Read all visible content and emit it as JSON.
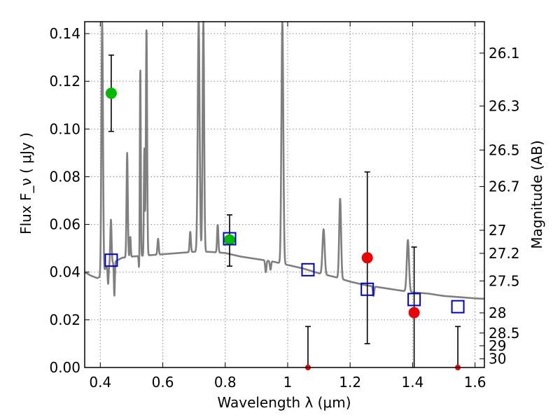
{
  "chart_data": {
    "type": "scatter",
    "xlabel": "Wavelength  λ (μm)",
    "ylabel_left": "Flux  F_ν  ( μJy )",
    "ylabel_right": "Magnitude (AB)",
    "xlim": [
      0.35,
      1.63
    ],
    "ylim": [
      0.0,
      0.145
    ],
    "x_ticks": [
      0.4,
      0.6,
      0.8,
      1.0,
      1.2,
      1.4,
      1.6
    ],
    "x_tick_labels": [
      "0.4",
      "0.6",
      "0.8",
      "1",
      "1.2",
      "1.4",
      "1.6"
    ],
    "y_ticks": [
      0.0,
      0.02,
      0.04,
      0.06,
      0.08,
      0.1,
      0.12,
      0.14
    ],
    "y_tick_labels": [
      "0.00",
      "0.02",
      "0.04",
      "0.06",
      "0.08",
      "0.10",
      "0.12",
      "0.14"
    ],
    "magnitude_ticks": [
      {
        "label": "26.1",
        "mag": 26.1
      },
      {
        "label": "26.3",
        "mag": 26.3
      },
      {
        "label": "26.5",
        "mag": 26.5
      },
      {
        "label": "26.7",
        "mag": 26.7
      },
      {
        "label": "27",
        "mag": 27.0
      },
      {
        "label": "27.2",
        "mag": 27.2
      },
      {
        "label": "27.5",
        "mag": 27.5
      },
      {
        "label": "28",
        "mag": 28.0
      },
      {
        "label": "28.5",
        "mag": 28.5
      },
      {
        "label": "29",
        "mag": 29.0
      },
      {
        "label": "30",
        "mag": 30.0
      }
    ],
    "grid": true,
    "series": [
      {
        "name": "observed-green",
        "color": "#00bb00",
        "points": [
          {
            "x": 0.435,
            "y": 0.115,
            "ylo": 0.099,
            "yhi": 0.131
          },
          {
            "x": 0.814,
            "y": 0.0535,
            "ylo": 0.0425,
            "yhi": 0.064
          }
        ]
      },
      {
        "name": "observed-red",
        "color": "#ee0000",
        "points": [
          {
            "x": 1.255,
            "y": 0.046,
            "ylo": 0.01,
            "yhi": 0.082
          },
          {
            "x": 1.405,
            "y": 0.023,
            "ylo": 0.0,
            "yhi": 0.0505
          }
        ]
      },
      {
        "name": "upper-limits",
        "color": "#ee0000",
        "points": [
          {
            "x": 1.065,
            "y": 0.0,
            "ylo": 0.0,
            "yhi": 0.0172
          },
          {
            "x": 1.545,
            "y": 0.0,
            "ylo": 0.0,
            "yhi": 0.0172
          }
        ]
      },
      {
        "name": "model-photometry",
        "color": "#0000cc",
        "marker": "open-square",
        "points": [
          {
            "x": 0.435,
            "y": 0.045
          },
          {
            "x": 0.814,
            "y": 0.054
          },
          {
            "x": 1.065,
            "y": 0.041
          },
          {
            "x": 1.255,
            "y": 0.0328
          },
          {
            "x": 1.405,
            "y": 0.0285
          },
          {
            "x": 1.545,
            "y": 0.0255
          }
        ]
      }
    ],
    "model_spectrum": {
      "color": "#7f7f7f",
      "continuum": [
        [
          0.35,
          0.04
        ],
        [
          0.37,
          0.0385
        ],
        [
          0.39,
          0.0375
        ],
        [
          0.4,
          0.038
        ],
        [
          0.41,
          0.041
        ],
        [
          0.44,
          0.044
        ],
        [
          0.47,
          0.046
        ],
        [
          0.5,
          0.0465
        ],
        [
          0.55,
          0.047
        ],
        [
          0.6,
          0.0475
        ],
        [
          0.65,
          0.048
        ],
        [
          0.7,
          0.0485
        ],
        [
          0.75,
          0.0485
        ],
        [
          0.8,
          0.048
        ],
        [
          0.85,
          0.0465
        ],
        [
          0.9,
          0.0455
        ],
        [
          0.95,
          0.0445
        ],
        [
          1.0,
          0.043
        ],
        [
          1.05,
          0.0415
        ],
        [
          1.1,
          0.0395
        ],
        [
          1.15,
          0.038
        ],
        [
          1.2,
          0.036
        ],
        [
          1.25,
          0.0345
        ],
        [
          1.3,
          0.0335
        ],
        [
          1.35,
          0.0325
        ],
        [
          1.4,
          0.0315
        ],
        [
          1.45,
          0.031
        ],
        [
          1.5,
          0.03
        ],
        [
          1.55,
          0.0295
        ],
        [
          1.6,
          0.029
        ],
        [
          1.63,
          0.0288
        ]
      ],
      "lines": [
        {
          "x": 0.406,
          "peak": 0.145,
          "width": 0.005
        },
        {
          "x": 0.434,
          "peak": 0.062,
          "width": 0.004
        },
        {
          "x": 0.486,
          "peak": 0.09,
          "width": 0.004
        },
        {
          "x": 0.496,
          "peak": 0.055,
          "width": 0.003
        },
        {
          "x": 0.528,
          "peak": 0.128,
          "width": 0.003
        },
        {
          "x": 0.541,
          "peak": 0.092,
          "width": 0.003
        },
        {
          "x": 0.548,
          "peak": 0.145,
          "width": 0.004
        },
        {
          "x": 0.585,
          "peak": 0.054,
          "width": 0.004
        },
        {
          "x": 0.688,
          "peak": 0.057,
          "width": 0.004
        },
        {
          "x": 0.715,
          "peak": 0.145,
          "width": 0.006
        },
        {
          "x": 0.73,
          "peak": 0.145,
          "width": 0.005
        },
        {
          "x": 0.776,
          "peak": 0.06,
          "width": 0.004
        },
        {
          "x": 0.983,
          "peak": 0.145,
          "width": 0.006
        },
        {
          "x": 1.115,
          "peak": 0.058,
          "width": 0.007
        },
        {
          "x": 1.168,
          "peak": 0.071,
          "width": 0.006
        },
        {
          "x": 1.385,
          "peak": 0.0535,
          "width": 0.007
        }
      ],
      "dips": [
        {
          "x": 0.412,
          "depth": 0.04,
          "width": 0.004
        },
        {
          "x": 0.425,
          "depth": 0.035,
          "width": 0.003
        },
        {
          "x": 0.445,
          "depth": 0.03,
          "width": 0.003
        },
        {
          "x": 0.525,
          "depth": 0.038,
          "width": 0.003
        },
        {
          "x": 0.55,
          "depth": 0.041,
          "width": 0.003
        },
        {
          "x": 0.93,
          "depth": 0.04,
          "width": 0.004
        },
        {
          "x": 0.945,
          "depth": 0.041,
          "width": 0.004
        },
        {
          "x": 1.275,
          "depth": 0.03,
          "width": 0.004
        }
      ]
    }
  }
}
